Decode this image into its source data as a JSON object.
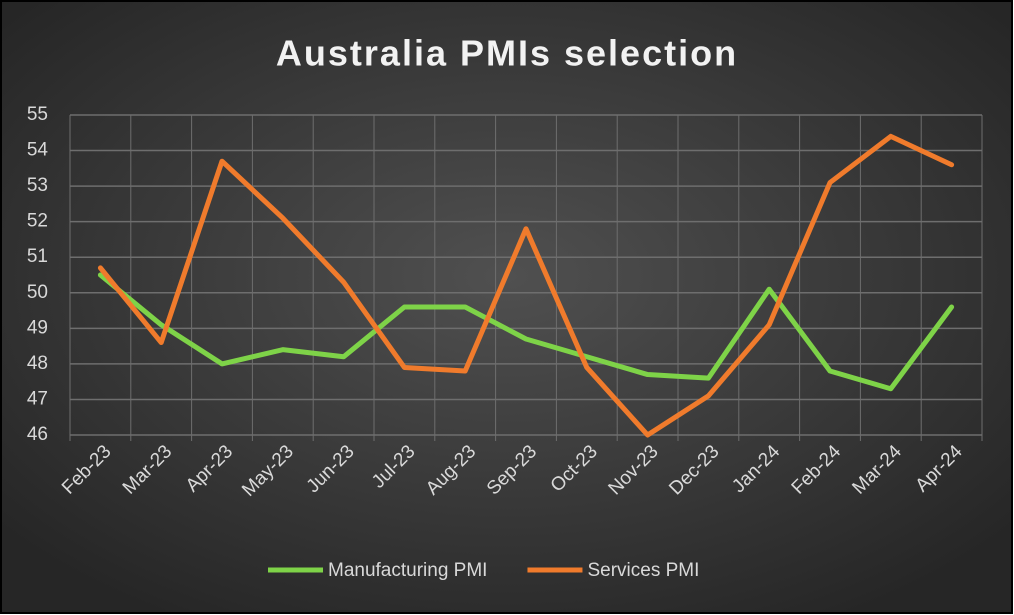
{
  "chart_data": {
    "type": "line",
    "title": "Australia PMIs selection",
    "categories": [
      "Feb-23",
      "Mar-23",
      "Apr-23",
      "May-23",
      "Jun-23",
      "Jul-23",
      "Aug-23",
      "Sep-23",
      "Oct-23",
      "Nov-23",
      "Dec-23",
      "Jan-24",
      "Feb-24",
      "Mar-24",
      "Apr-24"
    ],
    "series": [
      {
        "name": "Manufacturing PMI",
        "color": "#7ed348",
        "values": [
          50.5,
          49.1,
          48.0,
          48.4,
          48.2,
          49.6,
          49.6,
          48.7,
          48.2,
          47.7,
          47.6,
          50.1,
          47.8,
          47.3,
          49.6
        ]
      },
      {
        "name": "Services PMI",
        "color": "#f07b2c",
        "values": [
          50.7,
          48.6,
          53.7,
          52.1,
          50.3,
          47.9,
          47.8,
          51.8,
          47.9,
          46.0,
          47.1,
          49.1,
          53.1,
          54.4,
          53.6
        ]
      }
    ],
    "ylim": [
      46,
      55
    ],
    "yticks": [
      46,
      47,
      48,
      49,
      50,
      51,
      52,
      53,
      54,
      55
    ],
    "grid": true,
    "legend": "bottom"
  }
}
